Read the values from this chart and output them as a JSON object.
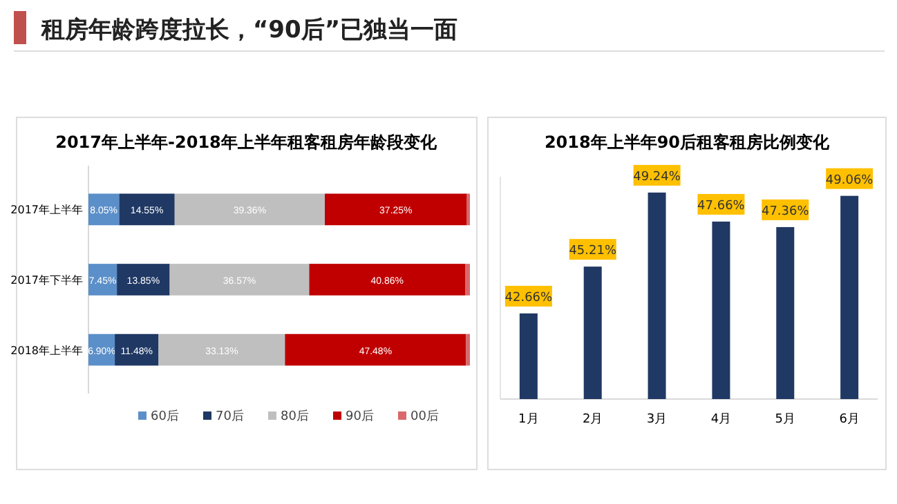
{
  "chart_data": [
    {
      "type": "other",
      "title": "租房年龄跨度拉长，“90后”已独当一面"
    },
    {
      "type": "bar",
      "title": "2017年上半年-2018年上半年租客租房年龄段变化",
      "orientation": "horizontal",
      "stacked": true,
      "legend": "bottom",
      "categories": [
        "2017年上半年",
        "2017年下半年",
        "2018年上半年"
      ],
      "series": [
        {
          "name": "60后",
          "color": "#5b8fc9",
          "values": [
            8.05,
            7.45,
            6.9
          ],
          "value_labels": [
            "8.05%",
            "7.45%",
            "6.90%"
          ]
        },
        {
          "name": "70后",
          "color": "#1f3864",
          "values": [
            14.55,
            13.85,
            11.48
          ],
          "value_labels": [
            "14.55%",
            "13.85%",
            "11.48%"
          ]
        },
        {
          "name": "80后",
          "color": "#bfbfbf",
          "values": [
            39.36,
            36.57,
            33.13
          ],
          "value_labels": [
            "39.36%",
            "36.57%",
            "33.13%"
          ]
        },
        {
          "name": "90后",
          "color": "#c00000",
          "values": [
            37.25,
            40.86,
            47.48
          ],
          "value_labels": [
            "37.25%",
            "40.86%",
            "47.48%"
          ]
        },
        {
          "name": "00后",
          "color": "#d9696b",
          "values": [
            0.79,
            1.27,
            1.01
          ],
          "value_labels": [
            null,
            null,
            null
          ]
        }
      ]
    },
    {
      "type": "bar",
      "title": "2018年上半年90后租客租房比例变化",
      "categories": [
        "1月",
        "2月",
        "3月",
        "4月",
        "5月",
        "6月"
      ],
      "values": [
        42.66,
        45.21,
        49.24,
        47.66,
        47.36,
        49.06
      ],
      "color": "#203864",
      "value_labels": [
        "42.66%",
        "45.21%",
        "49.24%",
        "47.66%",
        "47.36%",
        "49.06%"
      ],
      "ylim": [
        38,
        50.1
      ],
      "tick_labels": "x"
    }
  ]
}
